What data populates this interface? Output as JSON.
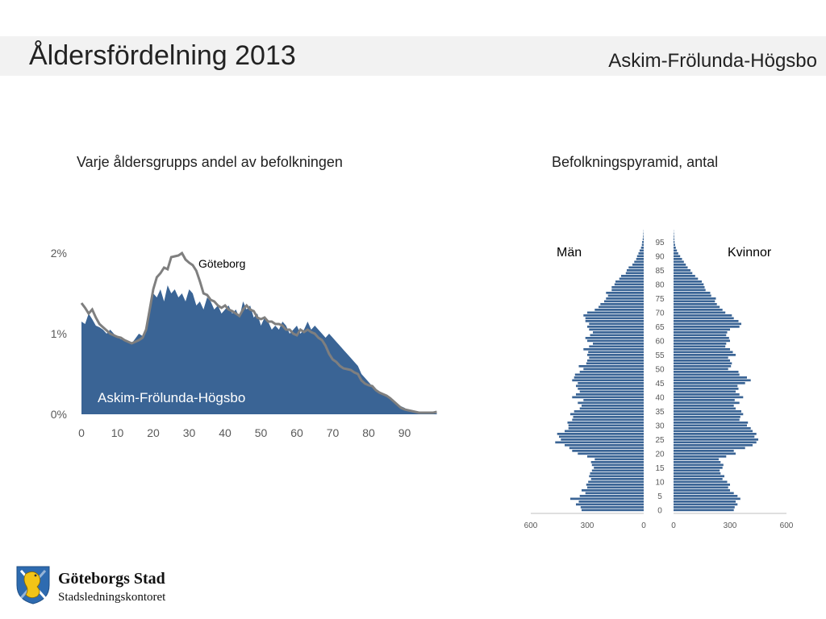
{
  "header": {
    "title": "Åldersfördelning 2013",
    "district": "Askim-Frölunda-Högsbo"
  },
  "charts": {
    "share": {
      "subtitle": "Varje åldersgrupps andel av befolkningen",
      "area_label": "Askim-Frölunda-Högsbo",
      "line_label": "Göteborg"
    },
    "pyramid": {
      "subtitle": "Befolkningspyramid, antal",
      "left_label": "Män",
      "right_label": "Kvinnor"
    }
  },
  "colors": {
    "area": "#3a6495",
    "line": "#7f7f7f",
    "bar": "#3a6495",
    "axis_text": "#595959",
    "header_band": "#f2f2f2"
  },
  "footer": {
    "org": "Göteborgs Stad",
    "dept": "Stadsledningskontoret",
    "logo_icon": "lion-crest-icon"
  },
  "chart_data": [
    {
      "type": "area",
      "ages": [
        0,
        1,
        2,
        3,
        4,
        5,
        6,
        7,
        8,
        9,
        10,
        11,
        12,
        13,
        14,
        15,
        16,
        17,
        18,
        19,
        20,
        21,
        22,
        23,
        24,
        25,
        26,
        27,
        28,
        29,
        30,
        31,
        32,
        33,
        34,
        35,
        36,
        37,
        38,
        39,
        40,
        41,
        42,
        43,
        44,
        45,
        46,
        47,
        48,
        49,
        50,
        51,
        52,
        53,
        54,
        55,
        56,
        57,
        58,
        59,
        60,
        61,
        62,
        63,
        64,
        65,
        66,
        67,
        68,
        69,
        70,
        71,
        72,
        73,
        74,
        75,
        76,
        77,
        78,
        79,
        80,
        81,
        82,
        83,
        84,
        85,
        86,
        87,
        88,
        89,
        90,
        91,
        92,
        93,
        94,
        95,
        96,
        97,
        98,
        99
      ],
      "series": [
        {
          "name": "Askim-Frölunda-Högsbo",
          "values": [
            1.15,
            1.12,
            1.25,
            1.18,
            1.1,
            1.08,
            1.05,
            1.0,
            1.05,
            1.0,
            0.96,
            0.93,
            0.92,
            0.9,
            0.88,
            0.94,
            1.0,
            0.97,
            1.05,
            1.35,
            1.5,
            1.45,
            1.55,
            1.4,
            1.6,
            1.5,
            1.55,
            1.45,
            1.5,
            1.4,
            1.55,
            1.5,
            1.35,
            1.4,
            1.3,
            1.45,
            1.4,
            1.3,
            1.35,
            1.25,
            1.3,
            1.35,
            1.25,
            1.3,
            1.2,
            1.4,
            1.3,
            1.35,
            1.2,
            1.25,
            1.1,
            1.2,
            1.15,
            1.05,
            1.1,
            1.05,
            1.15,
            1.1,
            1.0,
            1.05,
            1.1,
            1.0,
            1.05,
            1.15,
            1.05,
            1.1,
            1.05,
            1.0,
            0.95,
            1.0,
            0.95,
            0.9,
            0.85,
            0.8,
            0.75,
            0.7,
            0.65,
            0.6,
            0.5,
            0.45,
            0.4,
            0.35,
            0.3,
            0.27,
            0.24,
            0.22,
            0.2,
            0.15,
            0.12,
            0.1,
            0.08,
            0.05,
            0.03,
            0.03,
            0.02,
            0.02,
            0.02,
            0.01,
            0.01,
            0.01
          ]
        },
        {
          "name": "Göteborg",
          "values": [
            1.38,
            1.32,
            1.25,
            1.3,
            1.2,
            1.12,
            1.08,
            1.04,
            1.0,
            0.98,
            0.96,
            0.95,
            0.92,
            0.9,
            0.88,
            0.9,
            0.92,
            0.95,
            1.05,
            1.3,
            1.55,
            1.7,
            1.75,
            1.82,
            1.8,
            1.95,
            1.96,
            1.97,
            2.0,
            1.92,
            1.88,
            1.85,
            1.78,
            1.65,
            1.5,
            1.48,
            1.42,
            1.4,
            1.35,
            1.32,
            1.35,
            1.3,
            1.28,
            1.25,
            1.22,
            1.3,
            1.35,
            1.3,
            1.28,
            1.2,
            1.18,
            1.2,
            1.15,
            1.15,
            1.12,
            1.12,
            1.1,
            1.05,
            1.05,
            1.0,
            0.98,
            1.05,
            1.02,
            1.05,
            1.02,
            1.0,
            0.95,
            0.92,
            0.85,
            0.75,
            0.68,
            0.65,
            0.6,
            0.57,
            0.56,
            0.55,
            0.52,
            0.5,
            0.42,
            0.38,
            0.36,
            0.35,
            0.3,
            0.27,
            0.25,
            0.23,
            0.2,
            0.16,
            0.12,
            0.08,
            0.06,
            0.05,
            0.04,
            0.03,
            0.02,
            0.02,
            0.02,
            0.02,
            0.02,
            0.03
          ]
        }
      ],
      "x_ticks": [
        "0",
        "10",
        "20",
        "30",
        "40",
        "50",
        "60",
        "70",
        "80",
        "90"
      ],
      "y_ticks": [
        "0%",
        "1%",
        "2%"
      ],
      "ylim": [
        0,
        2
      ],
      "xlim": [
        0,
        100
      ],
      "grid": false,
      "legend": "inline"
    },
    {
      "type": "bar",
      "orientation": "horizontal-pyramid",
      "ages": [
        0,
        1,
        2,
        3,
        4,
        5,
        6,
        7,
        8,
        9,
        10,
        11,
        12,
        13,
        14,
        15,
        16,
        17,
        18,
        19,
        20,
        21,
        22,
        23,
        24,
        25,
        26,
        27,
        28,
        29,
        30,
        31,
        32,
        33,
        34,
        35,
        36,
        37,
        38,
        39,
        40,
        41,
        42,
        43,
        44,
        45,
        46,
        47,
        48,
        49,
        50,
        51,
        52,
        53,
        54,
        55,
        56,
        57,
        58,
        59,
        60,
        61,
        62,
        63,
        64,
        65,
        66,
        67,
        68,
        69,
        70,
        71,
        72,
        73,
        74,
        75,
        76,
        77,
        78,
        79,
        80,
        81,
        82,
        83,
        84,
        85,
        86,
        87,
        88,
        89,
        90,
        91,
        92,
        93,
        94,
        95,
        96,
        97,
        98,
        99
      ],
      "series": [
        {
          "name": "Män",
          "values": [
            330,
            335,
            360,
            345,
            390,
            340,
            310,
            330,
            300,
            305,
            295,
            280,
            290,
            285,
            275,
            265,
            275,
            280,
            260,
            300,
            350,
            380,
            395,
            420,
            470,
            440,
            450,
            460,
            420,
            400,
            400,
            405,
            380,
            375,
            390,
            370,
            340,
            330,
            350,
            320,
            380,
            360,
            340,
            350,
            360,
            350,
            380,
            370,
            365,
            340,
            320,
            345,
            305,
            300,
            290,
            300,
            295,
            320,
            290,
            270,
            300,
            310,
            285,
            270,
            290,
            300,
            290,
            310,
            310,
            320,
            300,
            260,
            240,
            230,
            210,
            200,
            190,
            200,
            170,
            170,
            155,
            150,
            130,
            120,
            95,
            90,
            80,
            60,
            50,
            40,
            35,
            28,
            22,
            14,
            10,
            8,
            5,
            3,
            2,
            1
          ]
        },
        {
          "name": "Kvinnor",
          "values": [
            320,
            325,
            340,
            330,
            355,
            340,
            320,
            300,
            290,
            300,
            285,
            260,
            270,
            250,
            245,
            260,
            265,
            250,
            240,
            280,
            330,
            320,
            380,
            420,
            440,
            450,
            430,
            440,
            420,
            410,
            390,
            395,
            350,
            355,
            370,
            360,
            330,
            320,
            350,
            325,
            370,
            350,
            330,
            345,
            340,
            380,
            410,
            390,
            350,
            345,
            290,
            305,
            310,
            300,
            290,
            330,
            315,
            300,
            275,
            280,
            300,
            295,
            280,
            285,
            300,
            350,
            360,
            345,
            320,
            310,
            275,
            260,
            245,
            230,
            220,
            225,
            200,
            195,
            170,
            165,
            160,
            150,
            130,
            115,
            100,
            90,
            75,
            65,
            55,
            45,
            35,
            25,
            18,
            12,
            8,
            5,
            4,
            3,
            2,
            1
          ]
        }
      ],
      "y_ticks": [
        "0",
        "5",
        "10",
        "15",
        "20",
        "25",
        "30",
        "35",
        "40",
        "45",
        "50",
        "55",
        "60",
        "65",
        "70",
        "75",
        "80",
        "85",
        "90",
        "95"
      ],
      "x_ticks_left": [
        "600",
        "300",
        "0"
      ],
      "x_ticks_right": [
        "0",
        "300",
        "600"
      ],
      "xlim": [
        0,
        600
      ],
      "grid": false
    }
  ]
}
